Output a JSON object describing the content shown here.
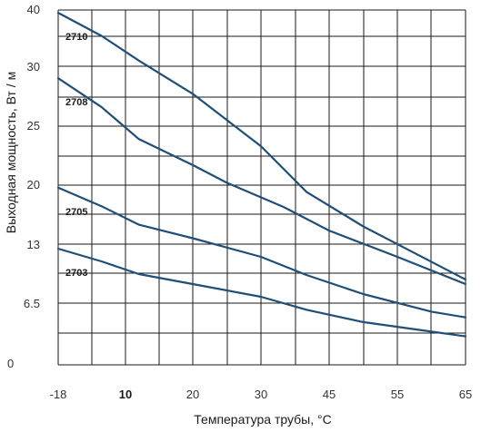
{
  "chart_data": {
    "type": "line",
    "title": "",
    "xlabel": "Температура трубы, °C",
    "ylabel": "Выходная мощность, Вт / м",
    "x_ticks": [
      {
        "label": "-18",
        "bold": false
      },
      {
        "label": "10",
        "bold": true
      },
      {
        "label": "20",
        "bold": false
      },
      {
        "label": "30",
        "bold": false
      },
      {
        "label": "45",
        "bold": false
      },
      {
        "label": "55",
        "bold": false
      },
      {
        "label": "65",
        "bold": false
      }
    ],
    "y_ticks": [
      "0",
      "6.5",
      "13",
      "13",
      "20",
      "25",
      "30",
      "40"
    ],
    "grid": true,
    "line_color": "#1f4e79",
    "grid_color": "#1a1a1a",
    "series": [
      {
        "name": "2710",
        "x": [
          -18,
          0,
          12,
          20,
          30,
          40,
          50,
          65
        ],
        "y": [
          39.5,
          35.4,
          31.0,
          27.7,
          23.3,
          19.2,
          15.1,
          9.1
        ]
      },
      {
        "name": "2708",
        "x": [
          -18,
          0,
          12,
          20,
          25,
          35,
          45,
          55,
          65
        ],
        "y": [
          29.0,
          26.6,
          23.9,
          21.7,
          20.2,
          17.4,
          14.6,
          11.6,
          8.6
        ]
      },
      {
        "name": "2705",
        "x": [
          -18,
          0,
          12,
          20,
          30,
          40,
          50,
          60,
          65
        ],
        "y": [
          19.7,
          17.5,
          15.3,
          13.7,
          11.6,
          9.6,
          7.5,
          5.6,
          5.0
        ]
      },
      {
        "name": "2703",
        "x": [
          -18,
          0,
          12,
          20,
          30,
          40,
          50,
          60,
          65
        ],
        "y": [
          12.5,
          11.1,
          9.7,
          8.6,
          7.2,
          5.8,
          4.5,
          3.5,
          3.0
        ]
      }
    ]
  }
}
